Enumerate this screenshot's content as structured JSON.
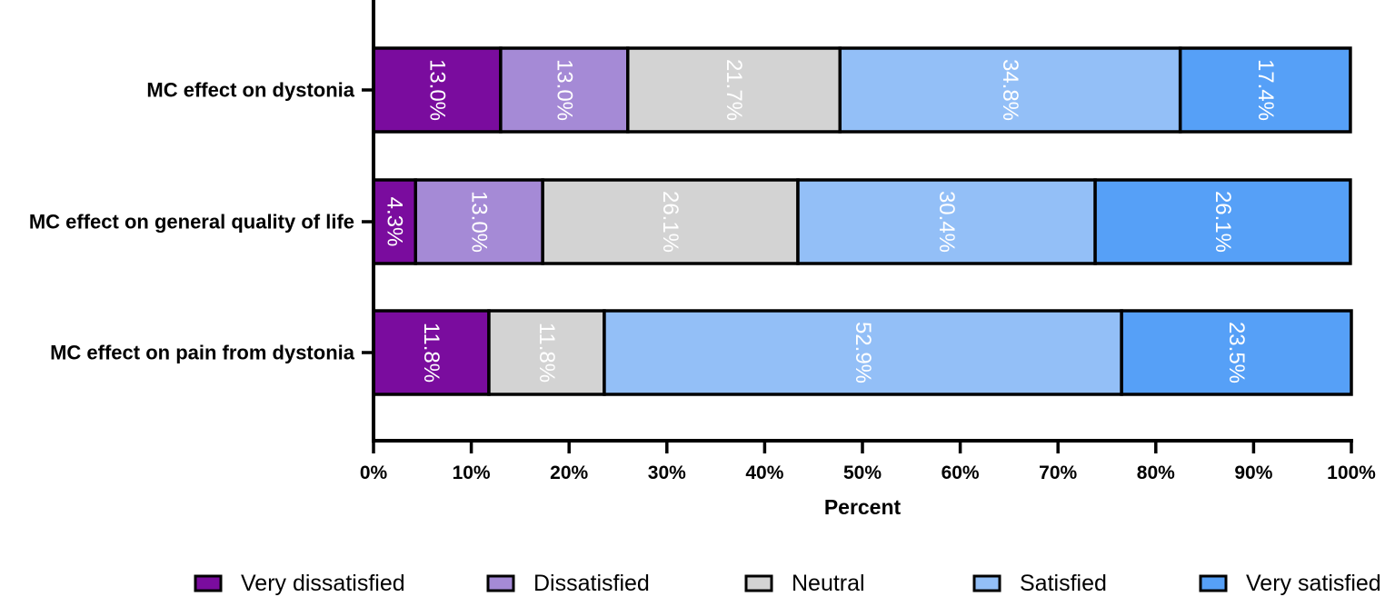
{
  "chart_data": {
    "type": "bar",
    "orientation": "horizontal",
    "stacked": true,
    "categories": [
      "MC effect on dystonia",
      "MC effect on general quality of life",
      "MC effect on pain from dystonia"
    ],
    "series": [
      {
        "name": "Very dissatisfied",
        "color": "#7a0c9e",
        "values": [
          13.0,
          4.3,
          11.8
        ],
        "labels": [
          "13.0%",
          "4.3%",
          "11.8%"
        ]
      },
      {
        "name": "Dissatisfied",
        "color": "#a58ad6",
        "values": [
          13.0,
          13.0,
          0
        ],
        "labels": [
          "13.0%",
          "13.0%",
          ""
        ]
      },
      {
        "name": "Neutral",
        "color": "#d3d3d3",
        "values": [
          21.7,
          26.1,
          11.8
        ],
        "labels": [
          "21.7%",
          "26.1%",
          "11.8%"
        ]
      },
      {
        "name": "Satisfied",
        "color": "#93bff7",
        "values": [
          34.8,
          30.4,
          52.9
        ],
        "labels": [
          "34.8%",
          "30.4%",
          "52.9%"
        ]
      },
      {
        "name": "Very satisfied",
        "color": "#56a0f7",
        "values": [
          17.4,
          26.1,
          23.5
        ],
        "labels": [
          "17.4%",
          "26.1%",
          "23.5%"
        ]
      }
    ],
    "xlabel": "Percent",
    "ylabel": "",
    "xlim": [
      0,
      100
    ],
    "xticks": [
      "0%",
      "10%",
      "20%",
      "30%",
      "40%",
      "50%",
      "60%",
      "70%",
      "80%",
      "90%",
      "100%"
    ],
    "legend_position": "bottom",
    "grid": false
  }
}
